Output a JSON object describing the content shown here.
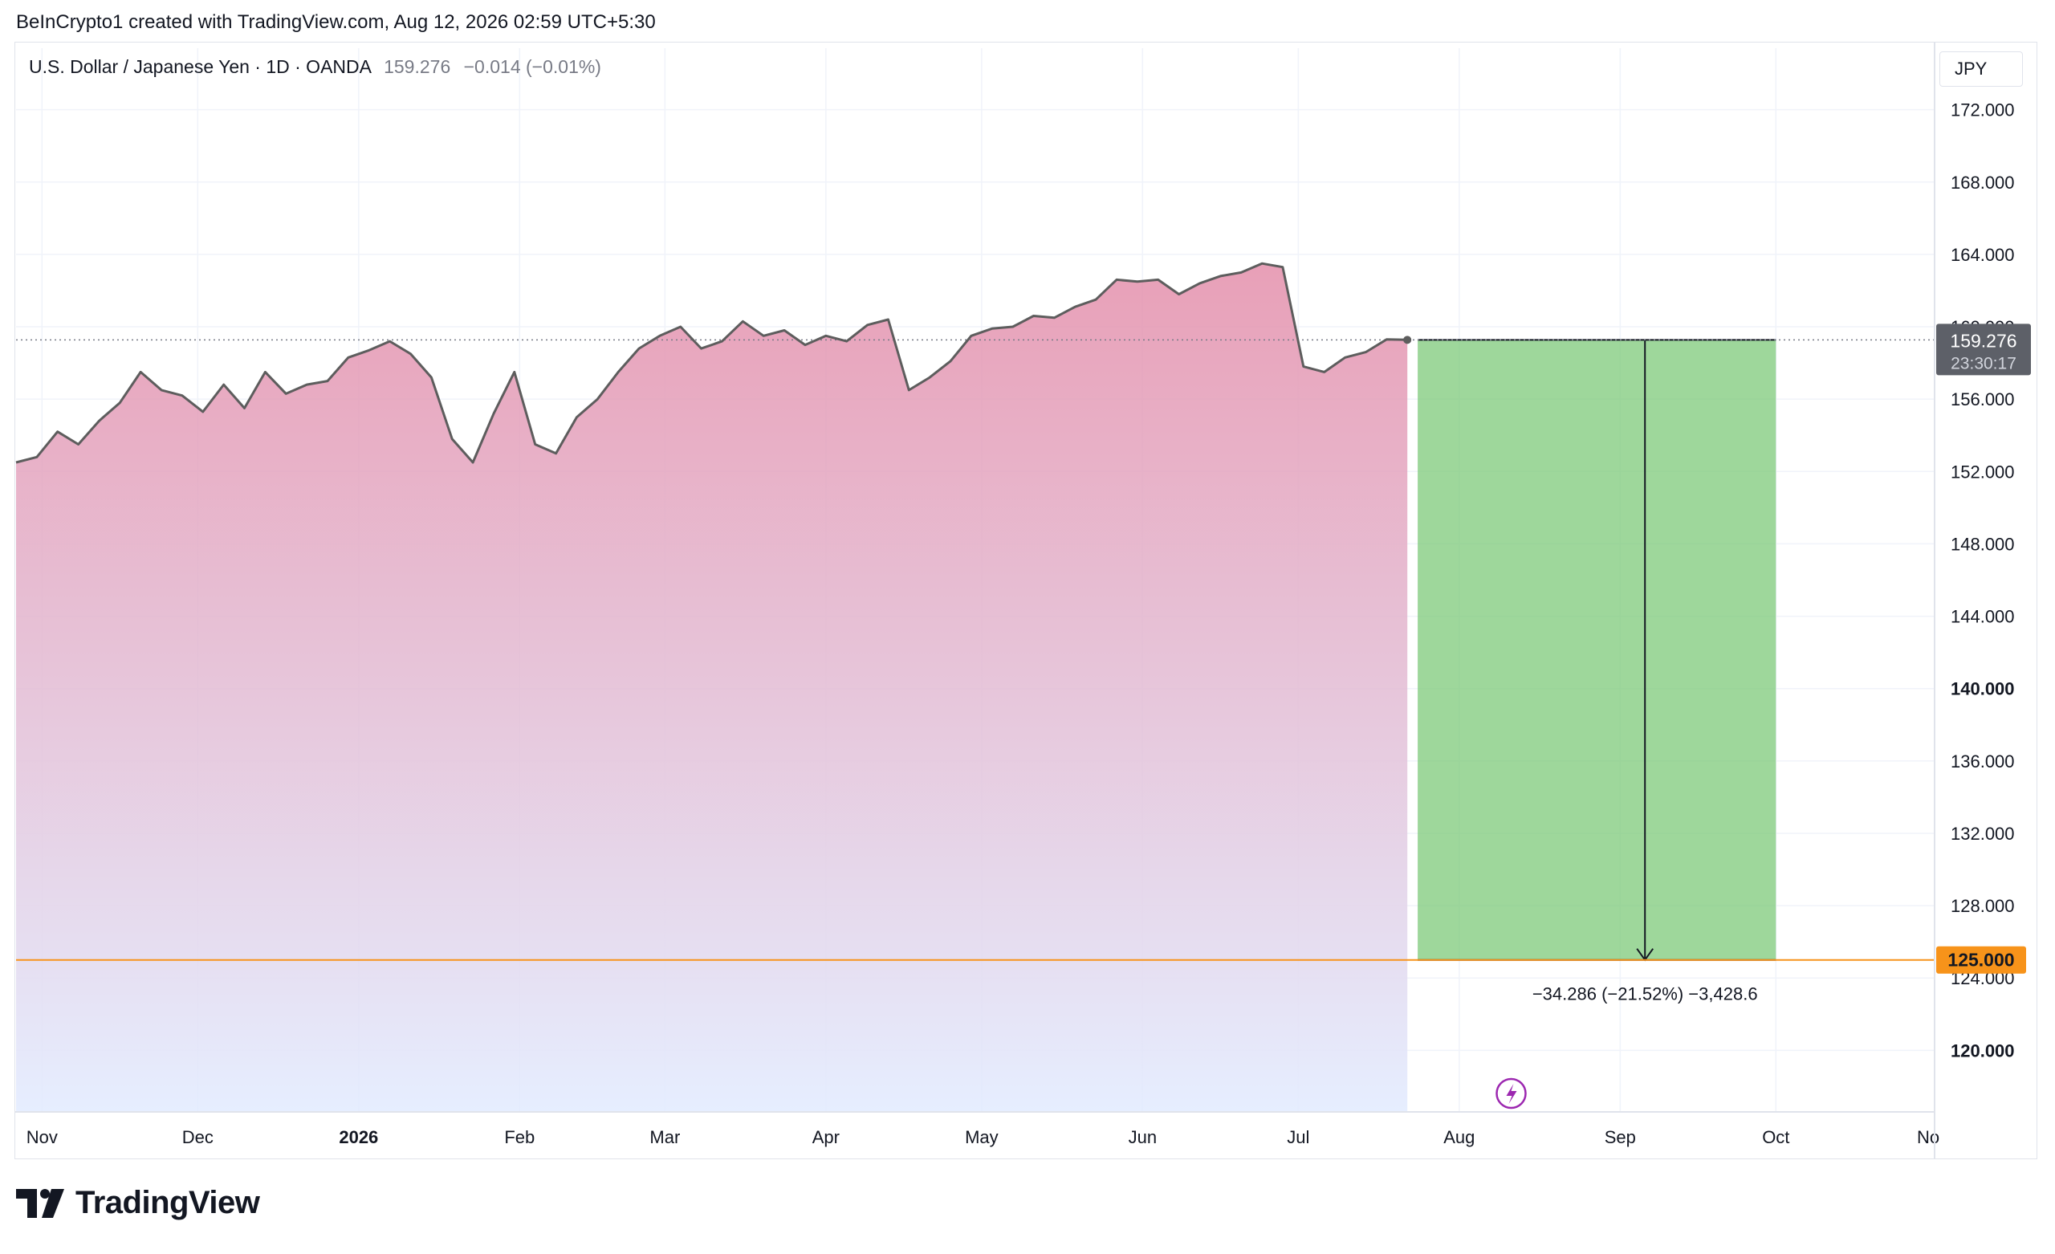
{
  "header": {
    "credit": "BeInCrypto1 created with TradingView.com, Aug 12, 2026 02:59 UTC+5:30"
  },
  "legend": {
    "symbol": "U.S. Dollar / Japanese Yen · 1D · OANDA",
    "last": "159.276",
    "change": "−0.014 (−0.01%)"
  },
  "currency_button": "JPY",
  "price_badge": {
    "price": "159.276",
    "countdown": "23:30:17"
  },
  "target_badge": "125.000",
  "measure_label": "−34.286 (−21.52%) −3,428.6",
  "footer": {
    "logo_text": "TradingView"
  },
  "colors": {
    "line": "#5d5d5d",
    "area_top": "#e48fab",
    "area_bottom": "#e3ecff",
    "profit_zone": "#7ec97a",
    "target_line": "#f7931a",
    "price_badge": "#5d6068"
  },
  "chart_data": {
    "type": "area",
    "title": "U.S. Dollar / Japanese Yen",
    "xlabel": "",
    "ylabel": "",
    "ylim": [
      116.6,
      175.4
    ],
    "grid": true,
    "y_ticks": [
      "120.000",
      "124.000",
      "128.000",
      "132.000",
      "136.000",
      "140.000",
      "144.000",
      "148.000",
      "152.000",
      "156.000",
      "160.000",
      "164.000",
      "168.000",
      "172.000"
    ],
    "x_ticks": [
      "Nov",
      "Dec",
      "2026",
      "Feb",
      "Mar",
      "Apr",
      "May",
      "Jun",
      "Jul",
      "Aug",
      "Sep",
      "Oct",
      "Nov"
    ],
    "series": [
      {
        "x": [
          "2025-10-27",
          "2025-10-31",
          "2025-11-04",
          "2025-11-08",
          "2025-11-12",
          "2025-11-16",
          "2025-11-20",
          "2025-11-24",
          "2025-11-28",
          "2025-12-02",
          "2025-12-06",
          "2025-12-10",
          "2025-12-14",
          "2025-12-18",
          "2025-12-22",
          "2025-12-26",
          "2025-12-30",
          "2026-01-03",
          "2026-01-07",
          "2026-01-11",
          "2026-01-15",
          "2026-01-19",
          "2026-01-23",
          "2026-01-27",
          "2026-01-31",
          "2026-02-04",
          "2026-02-08",
          "2026-02-12",
          "2026-02-16",
          "2026-02-20",
          "2026-02-24",
          "2026-02-28",
          "2026-03-04",
          "2026-03-08",
          "2026-03-12",
          "2026-03-16",
          "2026-03-20",
          "2026-03-24",
          "2026-03-28",
          "2026-04-01",
          "2026-04-05",
          "2026-04-09",
          "2026-04-13",
          "2026-04-17",
          "2026-04-21",
          "2026-04-25",
          "2026-04-29",
          "2026-05-03",
          "2026-05-07",
          "2026-05-11",
          "2026-05-15",
          "2026-05-19",
          "2026-05-23",
          "2026-05-27",
          "2026-05-31",
          "2026-06-04",
          "2026-06-08",
          "2026-06-12",
          "2026-06-16",
          "2026-06-20",
          "2026-06-24",
          "2026-06-28",
          "2026-07-02",
          "2026-07-06",
          "2026-07-10",
          "2026-07-14",
          "2026-07-18",
          "2026-07-22",
          "2026-07-24",
          "2026-07-28",
          "2026-08-01",
          "2026-08-05",
          "2026-08-09",
          "2026-08-11"
        ],
        "y": [
          152.5,
          152.8,
          154.2,
          153.5,
          154.8,
          155.8,
          157.5,
          156.5,
          156.2,
          155.3,
          156.8,
          155.5,
          157.5,
          156.3,
          156.8,
          157.0,
          158.3,
          158.7,
          159.2,
          158.5,
          157.2,
          153.8,
          152.5,
          155.2,
          157.5,
          153.5,
          153.0,
          155.0,
          156.0,
          157.5,
          158.8,
          159.5,
          160.0,
          158.8,
          159.2,
          160.3,
          159.5,
          159.8,
          159.0,
          159.5,
          159.2,
          160.1,
          160.4,
          156.5,
          157.2,
          158.1,
          159.5,
          159.9,
          160.0,
          160.6,
          160.5,
          161.1,
          161.5,
          162.6,
          162.5,
          162.6,
          161.8,
          162.4,
          162.8,
          163.0,
          163.5,
          163.3,
          157.8,
          157.5,
          158.3,
          158.6,
          159.3,
          159.276,
          159.276,
          159.276,
          159.276,
          159.276,
          159.276,
          159.276
        ]
      }
    ],
    "annotations": {
      "current_price": 159.276,
      "target_price": 125.0,
      "measure": "−34.286 (−21.52%) −3,428.6"
    }
  }
}
